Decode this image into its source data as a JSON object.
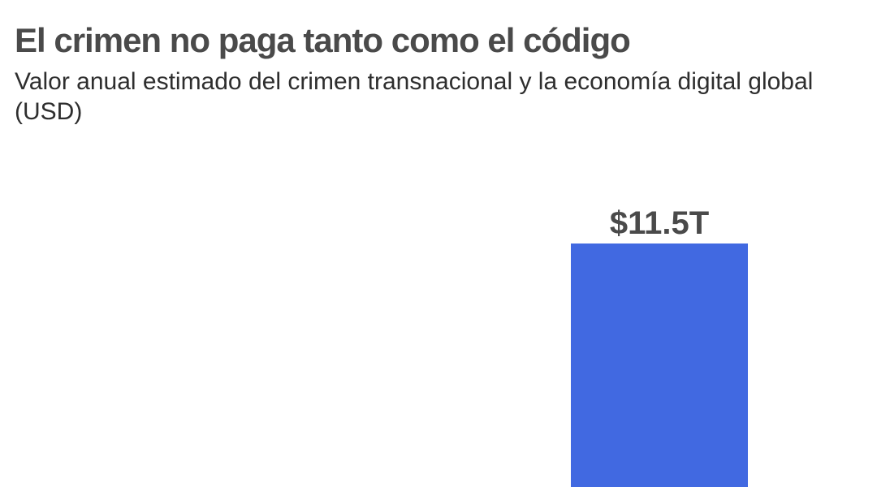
{
  "header": {
    "title": "El crimen no paga tanto como el código",
    "subtitle": "Valor anual estimado del crimen transnacional y la economía digital global (USD)"
  },
  "colors": {
    "bar": "#4169e1",
    "label": "#4a4a4a",
    "title": "#4a4a4a",
    "subtitle": "#2e2e2e"
  },
  "chart_data": {
    "type": "bar",
    "title": "El crimen no paga tanto como el código",
    "subtitle": "Valor anual estimado del crimen transnacional y la economía digital global (USD)",
    "categories": [
      "",
      ""
    ],
    "values": [
      null,
      11.5
    ],
    "data_labels": [
      "",
      "$11.5T"
    ],
    "unit": "trillion USD",
    "xlabel": "",
    "ylabel": "",
    "grid": false,
    "legend": "none"
  }
}
